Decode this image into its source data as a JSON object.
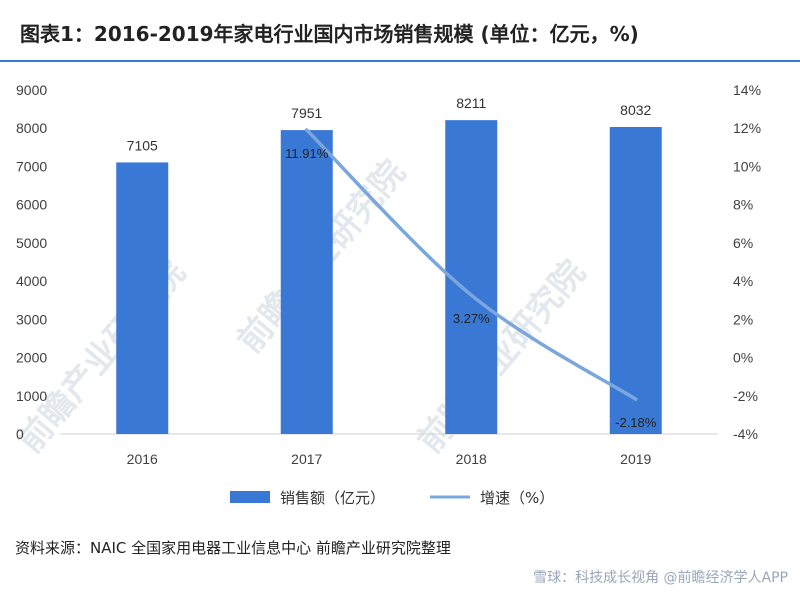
{
  "title": "图表1：2016-2019年家电行业国内市场销售规模 (单位：亿元，%)",
  "source": "资料来源：NAIC 全国家用电器工业信息中心 前瞻产业研究院整理",
  "watermark": "雪球：科技成长视角 @前瞻经济学人APP",
  "watermark_center": "前瞻产业研究院",
  "colors": {
    "bar": "#3a78d6",
    "line": "#7ba7dc",
    "title_rule": "#3a78d6"
  },
  "chart_data": {
    "type": "bar",
    "categories": [
      "2016",
      "2017",
      "2018",
      "2019"
    ],
    "series": [
      {
        "name": "销售额（亿元）",
        "type": "bar",
        "axis": "left",
        "values": [
          7105,
          7951,
          8211,
          8032
        ]
      },
      {
        "name": "增速（%）",
        "type": "line",
        "axis": "right",
        "values": [
          null,
          11.91,
          3.27,
          -2.18
        ],
        "labels": [
          "",
          "11.91%",
          "3.27%",
          "-2.18%"
        ]
      }
    ],
    "yleft": {
      "lim": [
        0,
        9000
      ],
      "ticks": [
        "0",
        "1000",
        "2000",
        "3000",
        "4000",
        "5000",
        "6000",
        "7000",
        "8000",
        "9000"
      ]
    },
    "yright": {
      "lim": [
        -4,
        14
      ],
      "ticks": [
        "-4%",
        "-2%",
        "0%",
        "2%",
        "4%",
        "6%",
        "8%",
        "10%",
        "12%",
        "14%"
      ]
    },
    "grid": false,
    "legend": "bottom"
  }
}
